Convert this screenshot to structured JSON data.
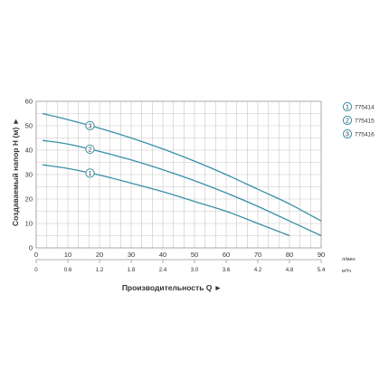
{
  "colors": {
    "curve": "#3a8fa8",
    "grid": "#c8c8c8",
    "frame": "#9a9a9a",
    "text": "#333333"
  },
  "chart_data": {
    "type": "line",
    "grid": true,
    "xlabel": "Производительность Q ►",
    "ylabel": "Создаваемый напор H (м) ►",
    "xlim": [
      0,
      90
    ],
    "ylim": [
      0,
      60
    ],
    "x_ticks": [
      "0",
      "10",
      "20",
      "30",
      "40",
      "50",
      "60",
      "70",
      "80",
      "90"
    ],
    "x_ticks_secondary": [
      "0",
      "0.6",
      "1.2",
      "1.8",
      "2.4",
      "3.0",
      "3.6",
      "4.2",
      "4.8",
      "5.4"
    ],
    "y_ticks": [
      "0",
      "10",
      "20",
      "30",
      "40",
      "50",
      "60"
    ],
    "x_unit": "л/мин",
    "x_unit_secondary": "м³/ч",
    "legend_position": "right",
    "series": [
      {
        "name": "775414",
        "marker": "1",
        "points": [
          [
            2,
            34
          ],
          [
            10,
            32.5
          ],
          [
            20,
            29.8
          ],
          [
            30,
            26.5
          ],
          [
            40,
            23
          ],
          [
            50,
            19
          ],
          [
            60,
            15
          ],
          [
            70,
            10
          ],
          [
            80,
            5
          ]
        ]
      },
      {
        "name": "775415",
        "marker": "2",
        "points": [
          [
            2,
            44
          ],
          [
            10,
            42.5
          ],
          [
            20,
            39.5
          ],
          [
            30,
            36
          ],
          [
            40,
            32
          ],
          [
            50,
            27.5
          ],
          [
            60,
            22.5
          ],
          [
            70,
            17
          ],
          [
            80,
            11
          ],
          [
            90,
            5
          ]
        ]
      },
      {
        "name": "775416",
        "marker": "3",
        "points": [
          [
            2,
            55
          ],
          [
            10,
            52.5
          ],
          [
            20,
            49
          ],
          [
            30,
            45
          ],
          [
            40,
            40.5
          ],
          [
            50,
            35.5
          ],
          [
            60,
            30
          ],
          [
            70,
            24
          ],
          [
            80,
            18
          ],
          [
            90,
            11
          ]
        ]
      }
    ]
  }
}
